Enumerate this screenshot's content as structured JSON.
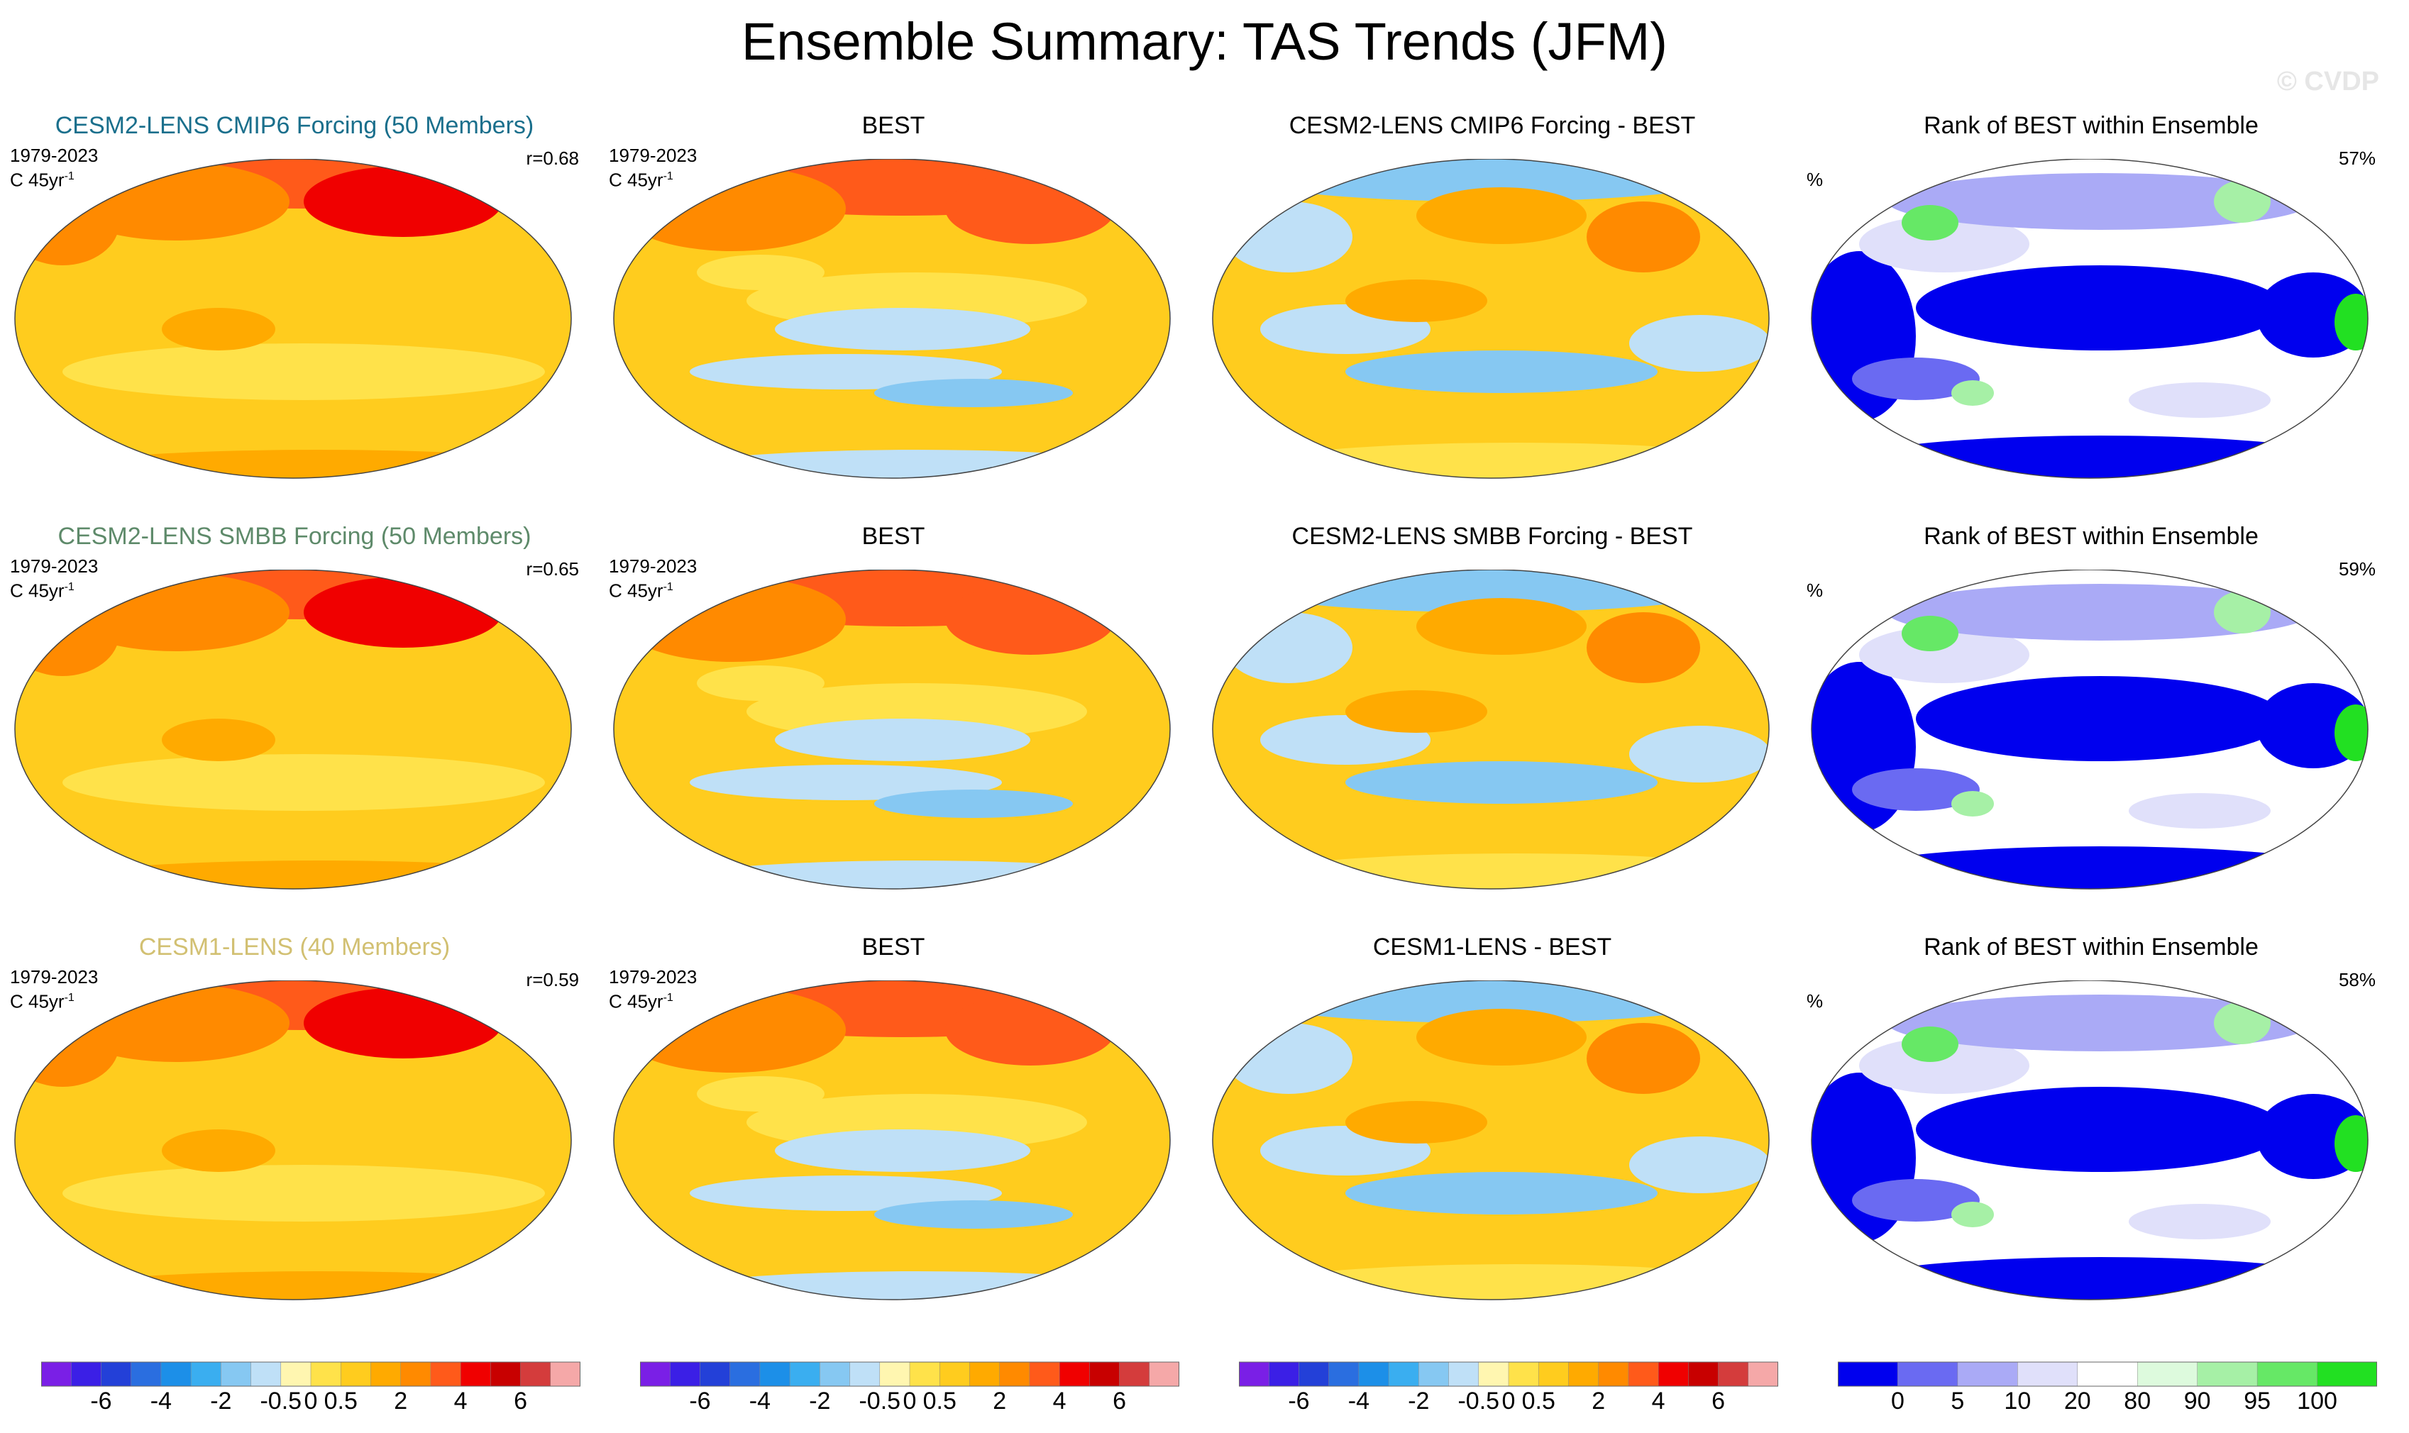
{
  "title": "Ensemble Summary: TAS Trends (JFM)",
  "copyright": "© CVDP",
  "colors": {
    "trend_scale": [
      "#7a1fe6",
      "#3b1fe6",
      "#2340d8",
      "#2a6ee0",
      "#1c8fe8",
      "#3aaef0",
      "#86c8f2",
      "#bfe0f7",
      "#fff6b0",
      "#ffe24a",
      "#ffcc1e",
      "#ffaa00",
      "#ff8a00",
      "#ff5a1a",
      "#f00000",
      "#c80000",
      "#d43c3c",
      "#f5a8a8"
    ],
    "rank_scale": [
      "#0000ee",
      "#6a6af2",
      "#aaaaf6",
      "#e0e0fa",
      "#ffffff",
      "#ddfadd",
      "#a6f0a6",
      "#66e866",
      "#22e022"
    ],
    "title_row1": "#1a6f8c",
    "title_row2": "#5e8a6a",
    "title_row3": "#d2c072"
  },
  "rows": [
    {
      "model_title": "CESM2-LENS CMIP6 Forcing (50 Members)",
      "obs_title": "BEST",
      "diff_title": "CESM2-LENS CMIP6 Forcing - BEST",
      "rank_title": "Rank of BEST within Ensemble",
      "period": "1979-2023",
      "units": "C 45yr",
      "units_exp": "-1",
      "pattern_corr": "r=0.68",
      "rank_units": "%",
      "rank_pct": "57%"
    },
    {
      "model_title": "CESM2-LENS SMBB Forcing (50 Members)",
      "obs_title": "BEST",
      "diff_title": "CESM2-LENS SMBB Forcing - BEST",
      "rank_title": "Rank of BEST within Ensemble",
      "period": "1979-2023",
      "units": "C 45yr",
      "units_exp": "-1",
      "pattern_corr": "r=0.65",
      "rank_units": "%",
      "rank_pct": "59%"
    },
    {
      "model_title": "CESM1-LENS (40 Members)",
      "obs_title": "BEST",
      "diff_title": "CESM1-LENS - BEST",
      "rank_title": "Rank of BEST within Ensemble",
      "period": "1979-2023",
      "units": "C 45yr",
      "units_exp": "-1",
      "pattern_corr": "r=0.59",
      "rank_units": "%",
      "rank_pct": "58%"
    }
  ],
  "trend_colorbar": {
    "n_bins": 18,
    "labels": [
      "-6",
      "-4",
      "-2",
      "-0.5",
      "0",
      "0.5",
      "2",
      "4",
      "6"
    ],
    "label_positions": [
      2,
      4,
      6,
      8,
      9,
      10,
      12,
      14,
      16
    ]
  },
  "rank_colorbar": {
    "n_bins": 9,
    "labels": [
      "0",
      "5",
      "10",
      "20",
      "80",
      "90",
      "95",
      "100"
    ],
    "label_positions": [
      1,
      2,
      3,
      4,
      5,
      6,
      7,
      8
    ]
  }
}
